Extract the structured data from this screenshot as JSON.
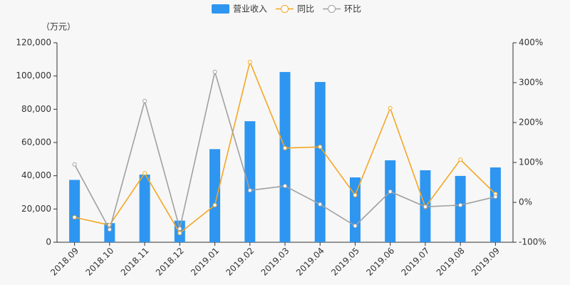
{
  "chart_data": {
    "type": "bar-line",
    "y_unit": "（万元）",
    "categories": [
      "2018.09",
      "2018.10",
      "2018.11",
      "2018.12",
      "2019.01",
      "2019.02",
      "2019.03",
      "2019.04",
      "2019.05",
      "2019.06",
      "2019.07",
      "2019.08",
      "2019.09"
    ],
    "series": [
      {
        "name": "营业收入",
        "type": "bar",
        "color": "#2e96f0",
        "values": [
          37500,
          11500,
          40700,
          13000,
          56000,
          72800,
          102400,
          96400,
          39000,
          49300,
          43300,
          39900,
          45000
        ]
      },
      {
        "name": "同比",
        "type": "line",
        "axis": "y2",
        "color": "#f5a623",
        "values": [
          -37.5,
          -57,
          73,
          -77,
          -7,
          352,
          136,
          139,
          18,
          236,
          -12,
          107,
          21
        ]
      },
      {
        "name": "环比",
        "type": "line",
        "axis": "y2",
        "color": "#a0a0a0",
        "values": [
          95,
          -68,
          254,
          -66,
          327,
          30,
          41,
          -5,
          -59,
          27,
          -11,
          -7,
          14
        ]
      }
    ],
    "ylim": [
      0,
      120000
    ],
    "yticks": [
      0,
      {
        "value": 20000,
        "label": "20,000"
      },
      {
        "value": 40000,
        "label": "40,000"
      },
      {
        "value": 60000,
        "label": "60,000"
      },
      {
        "value": 80000,
        "label": "80,000"
      },
      {
        "value": 100000,
        "label": "100,000"
      },
      {
        "value": 120000,
        "label": "120,000"
      }
    ],
    "y2lim": [
      -100,
      400
    ],
    "y2ticks": [
      {
        "value": -100,
        "label": "-100%"
      },
      {
        "value": 0,
        "label": "0%"
      },
      {
        "value": 100,
        "label": "100%"
      },
      {
        "value": 200,
        "label": "200%"
      },
      {
        "value": 300,
        "label": "300%"
      },
      {
        "value": 400,
        "label": "400%"
      }
    ],
    "legend": "top"
  }
}
